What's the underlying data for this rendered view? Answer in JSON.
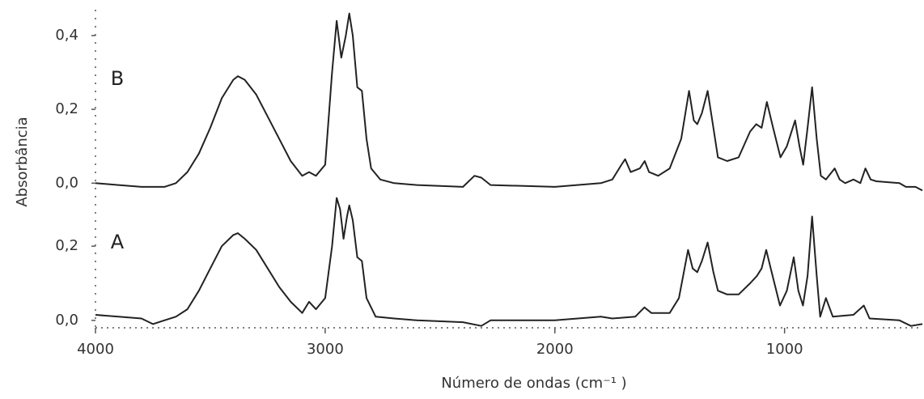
{
  "chart_data": [
    {
      "type": "line",
      "ylabel": "Absorbância",
      "xlim": [
        4000,
        400
      ],
      "ylim": [
        -0.03,
        0.47
      ],
      "yticks": [
        {
          "value": 0,
          "label": "0,0"
        },
        {
          "value": 0.2,
          "label": "0,2"
        },
        {
          "value": 0.4,
          "label": "0,4"
        }
      ],
      "x": [
        4000,
        3900,
        3800,
        3700,
        3650,
        3600,
        3550,
        3500,
        3450,
        3400,
        3380,
        3350,
        3300,
        3250,
        3200,
        3150,
        3100,
        3070,
        3040,
        3000,
        2970,
        2950,
        2930,
        2910,
        2895,
        2880,
        2860,
        2840,
        2820,
        2800,
        2760,
        2700,
        2600,
        2400,
        2350,
        2320,
        2280,
        2000,
        1800,
        1750,
        1710,
        1694,
        1670,
        1630,
        1609,
        1590,
        1550,
        1500,
        1450,
        1416,
        1395,
        1380,
        1360,
        1335,
        1310,
        1290,
        1250,
        1200,
        1150,
        1123,
        1100,
        1077,
        1050,
        1018,
        990,
        954,
        935,
        919,
        900,
        880,
        860,
        842,
        820,
        782,
        760,
        736,
        700,
        670,
        648,
        625,
        600,
        500,
        472,
        430,
        400
      ],
      "series": [
        {
          "name": "B",
          "color": "#222222",
          "values": [
            0.0,
            -0.005,
            -0.01,
            -0.01,
            0.0,
            0.03,
            0.08,
            0.15,
            0.23,
            0.28,
            0.29,
            0.28,
            0.24,
            0.18,
            0.12,
            0.06,
            0.02,
            0.03,
            0.02,
            0.05,
            0.3,
            0.44,
            0.34,
            0.4,
            0.46,
            0.4,
            0.26,
            0.25,
            0.12,
            0.04,
            0.01,
            0.0,
            -0.005,
            -0.01,
            0.02,
            0.015,
            -0.005,
            -0.01,
            0.0,
            0.01,
            0.05,
            0.065,
            0.03,
            0.04,
            0.06,
            0.03,
            0.02,
            0.04,
            0.12,
            0.25,
            0.17,
            0.16,
            0.19,
            0.25,
            0.15,
            0.07,
            0.06,
            0.07,
            0.14,
            0.16,
            0.15,
            0.22,
            0.15,
            0.07,
            0.1,
            0.17,
            0.1,
            0.05,
            0.15,
            0.26,
            0.12,
            0.02,
            0.01,
            0.04,
            0.01,
            0.0,
            0.01,
            0.0,
            0.04,
            0.01,
            0.005,
            0.0,
            -0.01,
            -0.01,
            -0.02
          ]
        }
      ]
    },
    {
      "type": "line",
      "xlabel": "Número de ondas (cm⁻¹ )",
      "xlim": [
        4000,
        400
      ],
      "ylim": [
        -0.02,
        0.34
      ],
      "xticks": [
        4000,
        3000,
        2000,
        1000
      ],
      "yticks": [
        {
          "value": 0,
          "label": "0,0"
        },
        {
          "value": 0.2,
          "label": "0,2"
        }
      ],
      "x": [
        4000,
        3900,
        3800,
        3750,
        3700,
        3650,
        3600,
        3550,
        3500,
        3450,
        3400,
        3380,
        3350,
        3300,
        3250,
        3200,
        3150,
        3100,
        3070,
        3040,
        3000,
        2970,
        2950,
        2935,
        2920,
        2905,
        2895,
        2880,
        2860,
        2840,
        2820,
        2780,
        2700,
        2600,
        2400,
        2320,
        2280,
        2000,
        1800,
        1750,
        1650,
        1610,
        1580,
        1500,
        1460,
        1420,
        1400,
        1380,
        1360,
        1335,
        1310,
        1290,
        1250,
        1200,
        1150,
        1120,
        1100,
        1080,
        1060,
        1020,
        990,
        960,
        940,
        920,
        900,
        880,
        860,
        845,
        820,
        790,
        700,
        655,
        630,
        500,
        450,
        400
      ],
      "series": [
        {
          "name": "A",
          "color": "#222222",
          "values": [
            0.015,
            0.01,
            0.005,
            -0.01,
            0.0,
            0.01,
            0.03,
            0.08,
            0.14,
            0.2,
            0.23,
            0.235,
            0.22,
            0.19,
            0.14,
            0.09,
            0.05,
            0.02,
            0.05,
            0.03,
            0.06,
            0.2,
            0.33,
            0.3,
            0.22,
            0.28,
            0.31,
            0.27,
            0.17,
            0.16,
            0.06,
            0.01,
            0.005,
            0.0,
            -0.005,
            -0.015,
            0.0,
            0.0,
            0.01,
            0.005,
            0.01,
            0.035,
            0.02,
            0.02,
            0.06,
            0.19,
            0.14,
            0.13,
            0.16,
            0.21,
            0.13,
            0.08,
            0.07,
            0.07,
            0.1,
            0.12,
            0.14,
            0.19,
            0.14,
            0.04,
            0.08,
            0.17,
            0.08,
            0.04,
            0.12,
            0.28,
            0.12,
            0.01,
            0.06,
            0.01,
            0.015,
            0.04,
            0.005,
            0.0,
            -0.015,
            -0.01
          ]
        }
      ]
    }
  ]
}
